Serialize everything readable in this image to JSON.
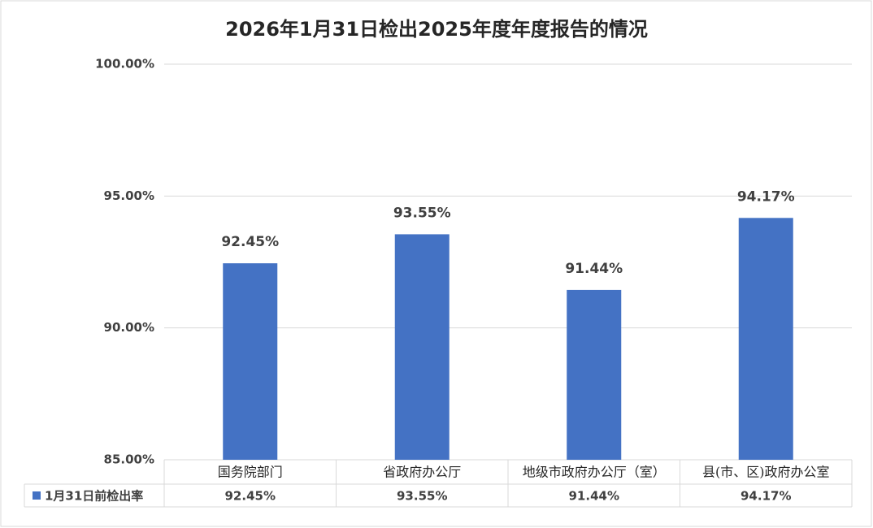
{
  "chart_data": {
    "type": "bar",
    "title": "2026年1月31日检出2025年度年度报告的情况",
    "categories": [
      "国务院部门",
      "省政府办公厅",
      "地级市政府办公厅（室）",
      "县(市、区)政府办公室"
    ],
    "series": [
      {
        "name": "1月31日前检出率",
        "color": "#4472c4",
        "values": [
          92.45,
          93.55,
          91.44,
          94.17
        ],
        "value_labels": [
          "92.45%",
          "93.55%",
          "91.44%",
          "94.17%"
        ]
      }
    ],
    "ylim": [
      85,
      100
    ],
    "yticks": [
      {
        "value": 85,
        "label": "85.00%"
      },
      {
        "value": 90,
        "label": "90.00%"
      },
      {
        "value": 95,
        "label": "95.00%"
      },
      {
        "value": 100,
        "label": "100.00%"
      }
    ],
    "grid": true
  }
}
